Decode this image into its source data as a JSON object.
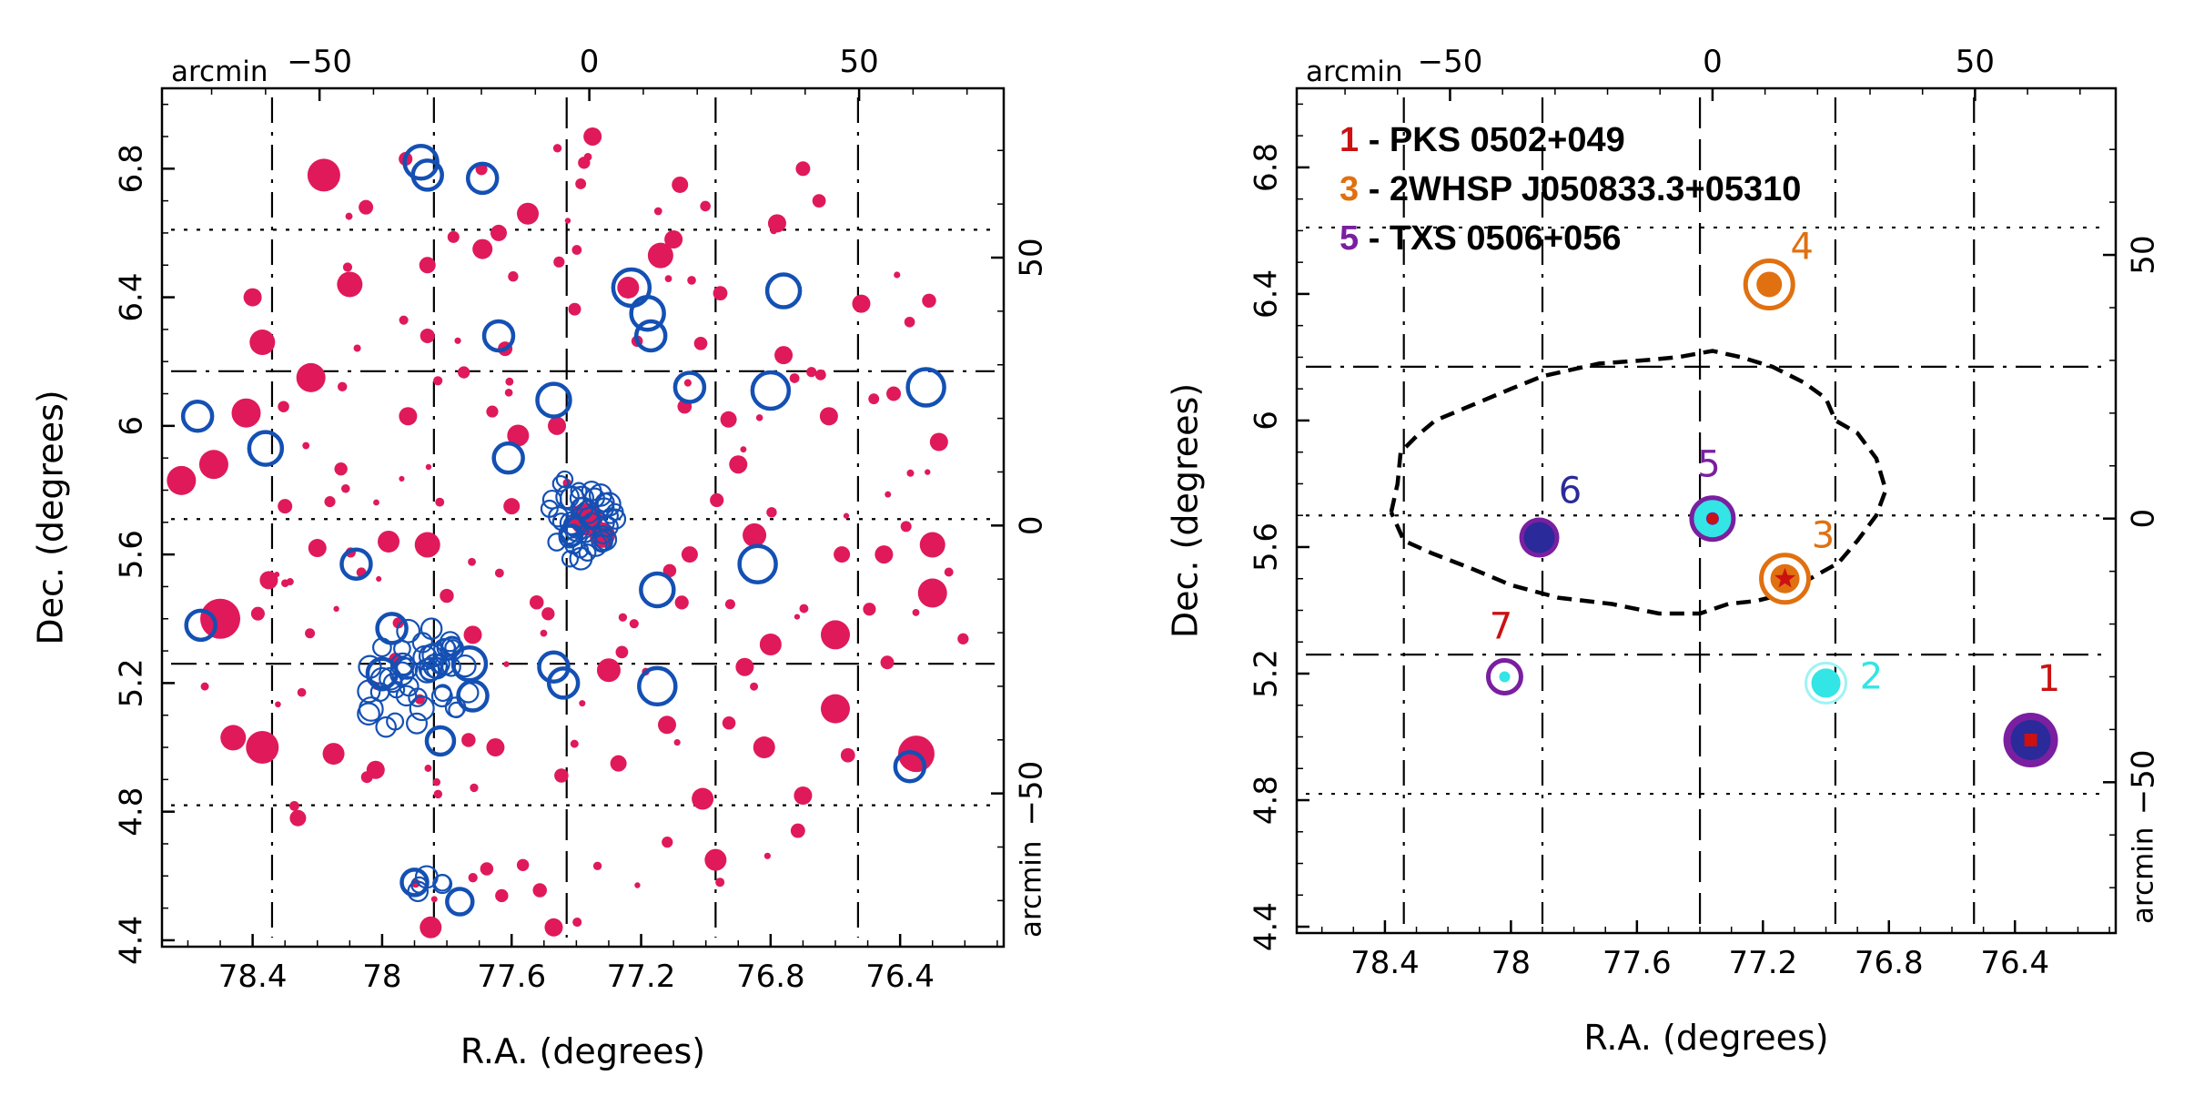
{
  "chart_data": [
    {
      "type": "scatter",
      "xlabel": "R.A. (degrees)",
      "ylabel": "Dec. (degrees)",
      "xlim": [
        78.68,
        76.08
      ],
      "ylim": [
        4.38,
        7.05
      ],
      "x_ticks": [
        78.4,
        78,
        77.6,
        77.2,
        76.8,
        76.4
      ],
      "y_ticks": [
        4.4,
        4.8,
        5.2,
        5.6,
        6,
        6.4,
        6.8
      ],
      "secondary_axes": {
        "unit": "arcmin",
        "x_ticks": [
          -50,
          0,
          50
        ],
        "y_ticks": [
          -50,
          0,
          50
        ],
        "center_ra": 77.36,
        "center_dec": 5.69
      },
      "grid_lines_ra": [
        78.34,
        77.84,
        77.43,
        76.97,
        76.53
      ],
      "grid_lines_dec": [
        4.82,
        5.26,
        5.71,
        6.17,
        6.61
      ],
      "colors": {
        "filled_sources": "#e0195a",
        "open_sources": "#1450b4"
      },
      "filled_sources": [
        {
          "ra": 78.62,
          "dec": 5.83,
          "r": 16
        },
        {
          "ra": 78.52,
          "dec": 5.88,
          "r": 16
        },
        {
          "ra": 78.5,
          "dec": 5.4,
          "r": 22
        },
        {
          "ra": 78.46,
          "dec": 5.03,
          "r": 14
        },
        {
          "ra": 78.37,
          "dec": 5.0,
          "r": 18
        },
        {
          "ra": 78.42,
          "dec": 6.04,
          "r": 16
        },
        {
          "ra": 78.4,
          "dec": 6.4,
          "r": 10
        },
        {
          "ra": 78.37,
          "dec": 6.26,
          "r": 14
        },
        {
          "ra": 78.35,
          "dec": 5.52,
          "r": 10
        },
        {
          "ra": 78.3,
          "dec": 5.75,
          "r": 8
        },
        {
          "ra": 78.22,
          "dec": 6.15,
          "r": 16
        },
        {
          "ra": 78.18,
          "dec": 6.78,
          "r": 18
        },
        {
          "ra": 78.1,
          "dec": 6.44,
          "r": 14
        },
        {
          "ra": 78.2,
          "dec": 5.62,
          "r": 10
        },
        {
          "ra": 78.15,
          "dec": 4.98,
          "r": 12
        },
        {
          "ra": 78.02,
          "dec": 4.93,
          "r": 10
        },
        {
          "ra": 77.98,
          "dec": 5.64,
          "r": 12
        },
        {
          "ra": 77.86,
          "dec": 5.63,
          "r": 14
        },
        {
          "ra": 77.92,
          "dec": 6.03,
          "r": 10
        },
        {
          "ra": 77.86,
          "dec": 6.28,
          "r": 8
        },
        {
          "ra": 77.69,
          "dec": 6.55,
          "r": 11
        },
        {
          "ra": 77.64,
          "dec": 6.6,
          "r": 9
        },
        {
          "ra": 77.72,
          "dec": 5.35,
          "r": 10
        },
        {
          "ra": 77.65,
          "dec": 5.0,
          "r": 10
        },
        {
          "ra": 77.58,
          "dec": 5.97,
          "r": 12
        },
        {
          "ra": 77.55,
          "dec": 6.66,
          "r": 12
        },
        {
          "ra": 77.46,
          "dec": 6.0,
          "r": 10
        },
        {
          "ra": 77.37,
          "dec": 5.71,
          "r": 18
        },
        {
          "ra": 77.32,
          "dec": 5.66,
          "r": 14
        },
        {
          "ra": 77.35,
          "dec": 6.9,
          "r": 10
        },
        {
          "ra": 77.3,
          "dec": 5.24,
          "r": 13
        },
        {
          "ra": 77.24,
          "dec": 6.43,
          "r": 12
        },
        {
          "ra": 77.14,
          "dec": 6.53,
          "r": 14
        },
        {
          "ra": 77.1,
          "dec": 6.58,
          "r": 10
        },
        {
          "ra": 77.12,
          "dec": 5.07,
          "r": 10
        },
        {
          "ra": 77.05,
          "dec": 5.6,
          "r": 9
        },
        {
          "ra": 77.01,
          "dec": 4.84,
          "r": 12
        },
        {
          "ra": 76.97,
          "dec": 4.65,
          "r": 12
        },
        {
          "ra": 76.93,
          "dec": 6.02,
          "r": 9
        },
        {
          "ra": 76.9,
          "dec": 5.88,
          "r": 10
        },
        {
          "ra": 76.85,
          "dec": 5.66,
          "r": 13
        },
        {
          "ra": 76.8,
          "dec": 5.32,
          "r": 12
        },
        {
          "ra": 76.78,
          "dec": 6.63,
          "r": 10
        },
        {
          "ra": 76.82,
          "dec": 5.0,
          "r": 12
        },
        {
          "ra": 76.76,
          "dec": 6.22,
          "r": 10
        },
        {
          "ra": 76.7,
          "dec": 4.85,
          "r": 10
        },
        {
          "ra": 76.62,
          "dec": 6.03,
          "r": 10
        },
        {
          "ra": 76.6,
          "dec": 5.35,
          "r": 16
        },
        {
          "ra": 76.6,
          "dec": 5.12,
          "r": 16
        },
        {
          "ra": 76.52,
          "dec": 6.38,
          "r": 10
        },
        {
          "ra": 76.45,
          "dec": 5.6,
          "r": 10
        },
        {
          "ra": 76.3,
          "dec": 5.48,
          "r": 16
        },
        {
          "ra": 76.3,
          "dec": 5.63,
          "r": 14
        },
        {
          "ra": 76.28,
          "dec": 5.95,
          "r": 10
        },
        {
          "ra": 76.35,
          "dec": 4.98,
          "r": 20
        },
        {
          "ra": 76.7,
          "dec": 6.8,
          "r": 8
        },
        {
          "ra": 77.85,
          "dec": 4.44,
          "r": 12
        },
        {
          "ra": 77.47,
          "dec": 4.44,
          "r": 10
        },
        {
          "ra": 76.88,
          "dec": 5.25,
          "r": 10
        },
        {
          "ra": 77.6,
          "dec": 5.75,
          "r": 9
        },
        {
          "ra": 77.86,
          "dec": 6.5,
          "r": 9
        },
        {
          "ra": 78.26,
          "dec": 4.78,
          "r": 9
        },
        {
          "ra": 77.27,
          "dec": 4.95,
          "r": 9
        },
        {
          "ra": 77.62,
          "dec": 6.24,
          "r": 8
        },
        {
          "ra": 76.58,
          "dec": 5.6,
          "r": 9
        },
        {
          "ra": 77.08,
          "dec": 6.75,
          "r": 9
        },
        {
          "ra": 78.05,
          "dec": 6.68,
          "r": 8
        },
        {
          "ra": 76.42,
          "dec": 6.1,
          "r": 8
        }
      ],
      "open_sources": [
        {
          "ra": 78.57,
          "dec": 6.03,
          "r": 14
        },
        {
          "ra": 78.36,
          "dec": 5.93,
          "r": 16
        },
        {
          "ra": 78.56,
          "dec": 5.38,
          "r": 14
        },
        {
          "ra": 77.88,
          "dec": 6.82,
          "r": 16
        },
        {
          "ra": 77.86,
          "dec": 6.78,
          "r": 14
        },
        {
          "ra": 77.69,
          "dec": 6.77,
          "r": 14
        },
        {
          "ra": 77.64,
          "dec": 6.28,
          "r": 14
        },
        {
          "ra": 77.61,
          "dec": 5.9,
          "r": 14
        },
        {
          "ra": 77.47,
          "dec": 6.08,
          "r": 16
        },
        {
          "ra": 77.23,
          "dec": 6.43,
          "r": 18
        },
        {
          "ra": 77.18,
          "dec": 6.35,
          "r": 16
        },
        {
          "ra": 77.17,
          "dec": 6.28,
          "r": 14
        },
        {
          "ra": 77.05,
          "dec": 6.12,
          "r": 14
        },
        {
          "ra": 76.8,
          "dec": 6.11,
          "r": 18
        },
        {
          "ra": 76.76,
          "dec": 6.42,
          "r": 16
        },
        {
          "ra": 76.32,
          "dec": 6.12,
          "r": 18
        },
        {
          "ra": 76.84,
          "dec": 5.57,
          "r": 18
        },
        {
          "ra": 77.15,
          "dec": 5.49,
          "r": 16
        },
        {
          "ra": 77.47,
          "dec": 5.25,
          "r": 14
        },
        {
          "ra": 77.44,
          "dec": 5.2,
          "r": 14
        },
        {
          "ra": 77.15,
          "dec": 5.19,
          "r": 18
        },
        {
          "ra": 77.97,
          "dec": 5.37,
          "r": 14
        },
        {
          "ra": 78.0,
          "dec": 5.23,
          "r": 14
        },
        {
          "ra": 77.73,
          "dec": 5.26,
          "r": 16
        },
        {
          "ra": 77.72,
          "dec": 5.16,
          "r": 14
        },
        {
          "ra": 76.37,
          "dec": 4.94,
          "r": 14
        },
        {
          "ra": 78.08,
          "dec": 5.57,
          "r": 14
        },
        {
          "ra": 77.82,
          "dec": 5.02,
          "r": 13
        },
        {
          "ra": 77.9,
          "dec": 4.58,
          "r": 12
        },
        {
          "ra": 77.76,
          "dec": 4.52,
          "r": 12
        }
      ],
      "small_open_clusters": [
        {
          "ra": 77.38,
          "dec": 5.72,
          "n": 46,
          "spread_ra": 0.11,
          "spread_dec": 0.15,
          "r": 8
        },
        {
          "ra": 77.9,
          "dec": 5.2,
          "n": 48,
          "spread_ra": 0.17,
          "spread_dec": 0.18,
          "r": 8
        },
        {
          "ra": 77.84,
          "dec": 4.56,
          "n": 5,
          "spread_ra": 0.06,
          "spread_dec": 0.04,
          "r": 8
        }
      ]
    },
    {
      "type": "scatter",
      "xlabel": "R.A. (degrees)",
      "ylabel": "Dec. (degrees)",
      "xlim": [
        78.68,
        76.08
      ],
      "ylim": [
        4.38,
        7.05
      ],
      "x_ticks": [
        78.4,
        78,
        77.6,
        77.2,
        76.8,
        76.4
      ],
      "y_ticks": [
        4.4,
        4.8,
        5.2,
        5.6,
        6,
        6.4,
        6.8
      ],
      "secondary_axes": {
        "unit": "arcmin",
        "x_ticks": [
          -50,
          0,
          50
        ],
        "y_ticks": [
          -50,
          0,
          50
        ],
        "center_ra": 77.36,
        "center_dec": 5.69
      },
      "legend": [
        {
          "number": "1",
          "text": "- PKS 0502+049",
          "color": "#cc1111"
        },
        {
          "number": "3",
          "text": "- 2WHSP J050833.3+05310",
          "color": "#e07010"
        },
        {
          "number": "5",
          "text": "- TXS 0506+056",
          "color": "#7a1fa0"
        }
      ],
      "sources": [
        {
          "id": "1",
          "ra": 76.35,
          "dec": 4.99,
          "color": "#cc1111"
        },
        {
          "id": "2",
          "ra": 77.0,
          "dec": 5.17,
          "color": "#33e5e5"
        },
        {
          "id": "3",
          "ra": 77.13,
          "dec": 5.5,
          "color": "#e07010"
        },
        {
          "id": "4",
          "ra": 77.18,
          "dec": 6.43,
          "color": "#e07010"
        },
        {
          "id": "5",
          "ra": 77.36,
          "dec": 5.69,
          "color": "#7a1fa0"
        },
        {
          "id": "6",
          "ra": 77.91,
          "dec": 5.63,
          "color": "#2a2a9a"
        },
        {
          "id": "7",
          "ra": 78.02,
          "dec": 5.19,
          "color": "#cc1111"
        }
      ],
      "contour": [
        [
          78.38,
          5.71
        ],
        [
          78.36,
          5.8
        ],
        [
          78.35,
          5.9
        ],
        [
          78.3,
          5.95
        ],
        [
          78.24,
          6.0
        ],
        [
          78.12,
          6.05
        ],
        [
          78.0,
          6.1
        ],
        [
          77.9,
          6.14
        ],
        [
          77.72,
          6.18
        ],
        [
          77.58,
          6.19
        ],
        [
          77.47,
          6.2
        ],
        [
          77.36,
          6.22
        ],
        [
          77.27,
          6.2
        ],
        [
          77.17,
          6.17
        ],
        [
          77.07,
          6.12
        ],
        [
          77.0,
          6.07
        ],
        [
          76.97,
          6.0
        ],
        [
          76.9,
          5.96
        ],
        [
          76.84,
          5.88
        ],
        [
          76.81,
          5.78
        ],
        [
          76.84,
          5.7
        ],
        [
          76.9,
          5.62
        ],
        [
          76.96,
          5.55
        ],
        [
          77.05,
          5.5
        ],
        [
          77.14,
          5.45
        ],
        [
          77.22,
          5.43
        ],
        [
          77.31,
          5.42
        ],
        [
          77.4,
          5.39
        ],
        [
          77.53,
          5.39
        ],
        [
          77.68,
          5.42
        ],
        [
          77.85,
          5.44
        ],
        [
          78.0,
          5.48
        ],
        [
          78.12,
          5.53
        ],
        [
          78.25,
          5.58
        ],
        [
          78.34,
          5.62
        ],
        [
          78.38,
          5.71
        ]
      ],
      "grid_lines_ra": [
        78.34,
        77.9,
        77.4,
        76.97,
        76.53
      ],
      "grid_lines_dec": [
        4.82,
        5.26,
        5.7,
        6.17,
        6.61
      ]
    }
  ]
}
